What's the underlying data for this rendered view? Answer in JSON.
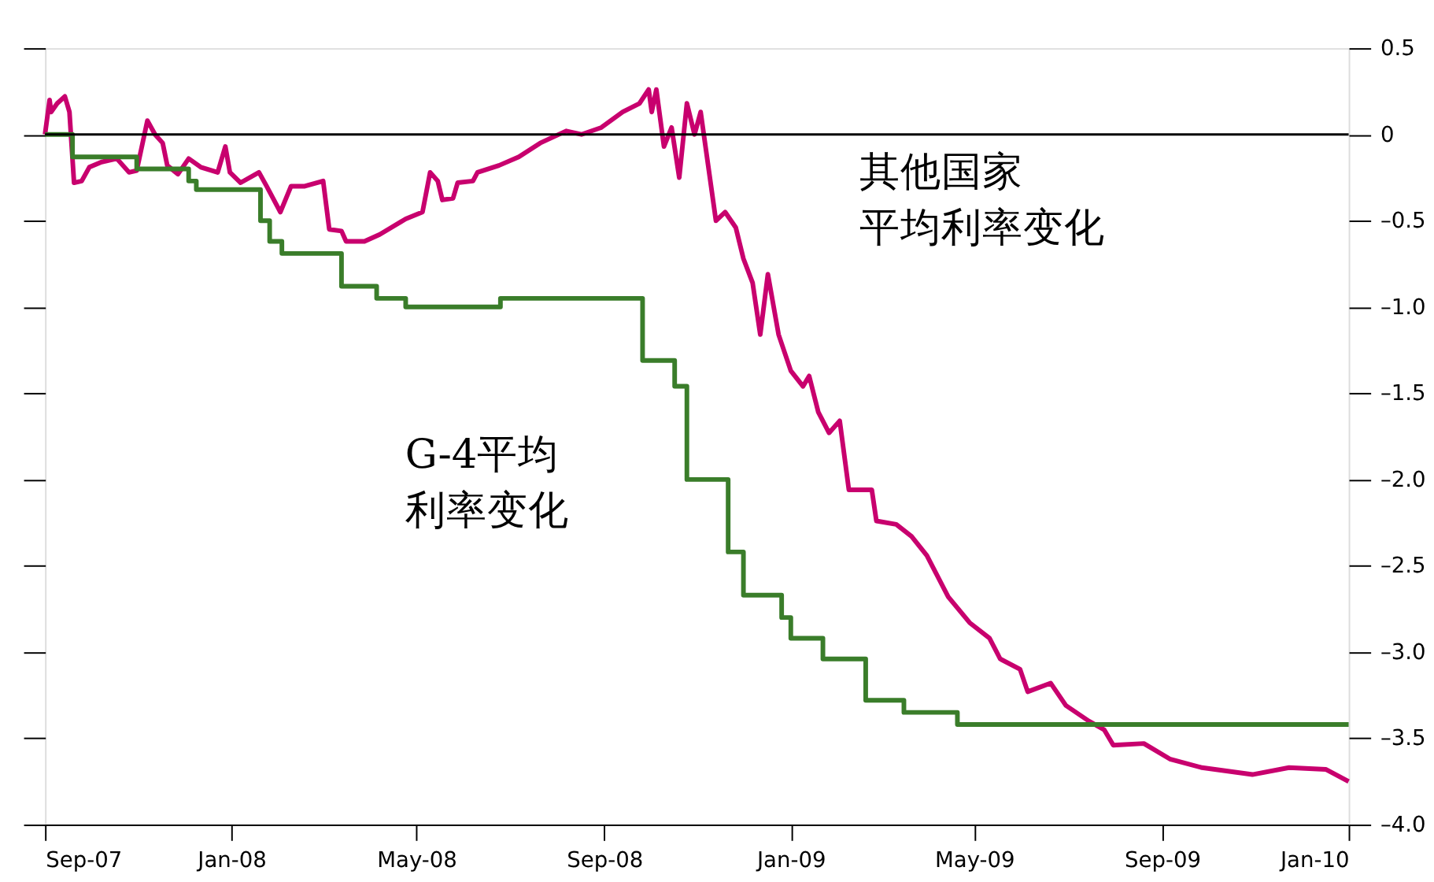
{
  "chart_data": {
    "type": "line",
    "xlim": [
      "2007-09-01",
      "2010-01-01"
    ],
    "ylim": [
      -4.0,
      0.5
    ],
    "xticks": [
      {
        "value": "2007-09-01",
        "label": "Sep-07"
      },
      {
        "value": "2008-01-01",
        "label": "Jan-08"
      },
      {
        "value": "2008-05-01",
        "label": "May-08"
      },
      {
        "value": "2008-09-01",
        "label": "Sep-08"
      },
      {
        "value": "2009-01-01",
        "label": "Jan-09"
      },
      {
        "value": "2009-05-01",
        "label": "May-09"
      },
      {
        "value": "2009-09-01",
        "label": "Sep-09"
      },
      {
        "value": "2010-01-01",
        "label": "Jan-10"
      }
    ],
    "yticks": [
      {
        "value": 0.5,
        "label": "0.5"
      },
      {
        "value": 0,
        "label": "0"
      },
      {
        "value": -0.5,
        "label": "–0.5"
      },
      {
        "value": -1.0,
        "label": "–1.0"
      },
      {
        "value": -1.5,
        "label": "–1.5"
      },
      {
        "value": -2.0,
        "label": "–2.0"
      },
      {
        "value": -2.5,
        "label": "–2.5"
      },
      {
        "value": -3.0,
        "label": "–3.0"
      },
      {
        "value": -3.5,
        "label": "–3.5"
      },
      {
        "value": -4.0,
        "label": "–4.0"
      }
    ],
    "grid": false,
    "marker": "none",
    "line_style": "solid",
    "ref_lines": [
      {
        "axis": "y",
        "value": 0,
        "color": "#000000"
      }
    ],
    "series": [
      {
        "name": "其他国家平均利率变化",
        "color": "#c8006e",
        "x": [
          "2007-09-01",
          "2007-09-04",
          "2007-09-05",
          "2007-09-09",
          "2007-09-14",
          "2007-09-17",
          "2007-09-20",
          "2007-09-25",
          "2007-09-30",
          "2007-10-08",
          "2007-10-18",
          "2007-10-26",
          "2007-10-31",
          "2007-11-07",
          "2007-11-12",
          "2007-11-17",
          "2007-11-20",
          "2007-11-27",
          "2007-12-04",
          "2007-12-12",
          "2007-12-23",
          "2007-12-28",
          "2007-12-31",
          "2008-01-07",
          "2008-01-19",
          "2008-01-24",
          "2008-02-02",
          "2008-02-09",
          "2008-02-18",
          "2008-03-01",
          "2008-03-05",
          "2008-03-13",
          "2008-03-16",
          "2008-03-28",
          "2008-04-07",
          "2008-04-24",
          "2008-05-05",
          "2008-05-10",
          "2008-05-15",
          "2008-05-18",
          "2008-05-25",
          "2008-05-28",
          "2008-06-07",
          "2008-06-10",
          "2008-06-24",
          "2008-07-07",
          "2008-07-21",
          "2008-08-07",
          "2008-08-17",
          "2008-08-30",
          "2008-09-13",
          "2008-09-24",
          "2008-09-30",
          "2008-10-02",
          "2008-10-05",
          "2008-10-10",
          "2008-10-15",
          "2008-10-20",
          "2008-10-25",
          "2008-10-30",
          "2008-11-03",
          "2008-11-13",
          "2008-11-19",
          "2008-11-26",
          "2008-12-01",
          "2008-12-07",
          "2008-12-12",
          "2008-12-17",
          "2008-12-24",
          "2009-01-01",
          "2009-01-09",
          "2009-01-13",
          "2009-01-19",
          "2009-01-26",
          "2009-02-02",
          "2009-02-08",
          "2009-02-23",
          "2009-02-26",
          "2009-03-11",
          "2009-03-21",
          "2009-03-31",
          "2009-04-14",
          "2009-04-28",
          "2009-05-11",
          "2009-05-18",
          "2009-05-31",
          "2009-06-05",
          "2009-06-20",
          "2009-06-30",
          "2009-07-15",
          "2009-07-25",
          "2009-07-31",
          "2009-08-20",
          "2009-09-06",
          "2009-09-27",
          "2009-10-30",
          "2009-11-23",
          "2009-12-17",
          "2010-01-01"
        ],
        "values": [
          0.0,
          0.2,
          0.13,
          0.18,
          0.22,
          0.13,
          -0.28,
          -0.27,
          -0.19,
          -0.16,
          -0.14,
          -0.22,
          -0.21,
          0.08,
          0.0,
          -0.05,
          -0.18,
          -0.23,
          -0.14,
          -0.19,
          -0.22,
          -0.07,
          -0.22,
          -0.28,
          -0.22,
          -0.3,
          -0.45,
          -0.3,
          -0.3,
          -0.27,
          -0.55,
          -0.56,
          -0.62,
          -0.62,
          -0.58,
          -0.49,
          -0.45,
          -0.22,
          -0.27,
          -0.38,
          -0.37,
          -0.28,
          -0.27,
          -0.22,
          -0.18,
          -0.13,
          -0.05,
          0.02,
          0.0,
          0.04,
          0.13,
          0.18,
          0.26,
          0.13,
          0.26,
          -0.07,
          0.04,
          -0.25,
          0.18,
          0.0,
          0.13,
          -0.5,
          -0.45,
          -0.54,
          -0.72,
          -0.86,
          -1.16,
          -0.81,
          -1.16,
          -1.37,
          -1.46,
          -1.4,
          -1.61,
          -1.73,
          -1.66,
          -2.06,
          -2.06,
          -2.24,
          -2.26,
          -2.33,
          -2.44,
          -2.68,
          -2.83,
          -2.92,
          -3.04,
          -3.1,
          -3.23,
          -3.18,
          -3.31,
          -3.4,
          -3.45,
          -3.54,
          -3.53,
          -3.62,
          -3.67,
          -3.71,
          -3.67,
          -3.68,
          -3.75
        ]
      },
      {
        "name": "G-4平均利率变化",
        "type": "step",
        "color": "#3a7d2a",
        "x": [
          "2007-09-01",
          "2007-09-19",
          "2007-10-31",
          "2007-12-04",
          "2007-12-09",
          "2008-01-20",
          "2008-01-26",
          "2008-02-03",
          "2008-03-13",
          "2008-04-05",
          "2008-04-24",
          "2008-06-25",
          "2008-09-26",
          "2008-10-17",
          "2008-10-25",
          "2008-11-21",
          "2008-12-01",
          "2008-12-26",
          "2009-01-01",
          "2009-01-22",
          "2009-02-19",
          "2009-03-16",
          "2009-04-20",
          "2010-01-01"
        ],
        "values": [
          0.0,
          -0.13,
          -0.2,
          -0.27,
          -0.32,
          -0.5,
          -0.62,
          -0.69,
          -0.88,
          -0.95,
          -1.0,
          -0.95,
          -1.31,
          -1.46,
          -2.0,
          -2.42,
          -2.67,
          -2.8,
          -2.92,
          -3.04,
          -3.28,
          -3.35,
          -3.42,
          -3.42
        ]
      }
    ]
  }
}
